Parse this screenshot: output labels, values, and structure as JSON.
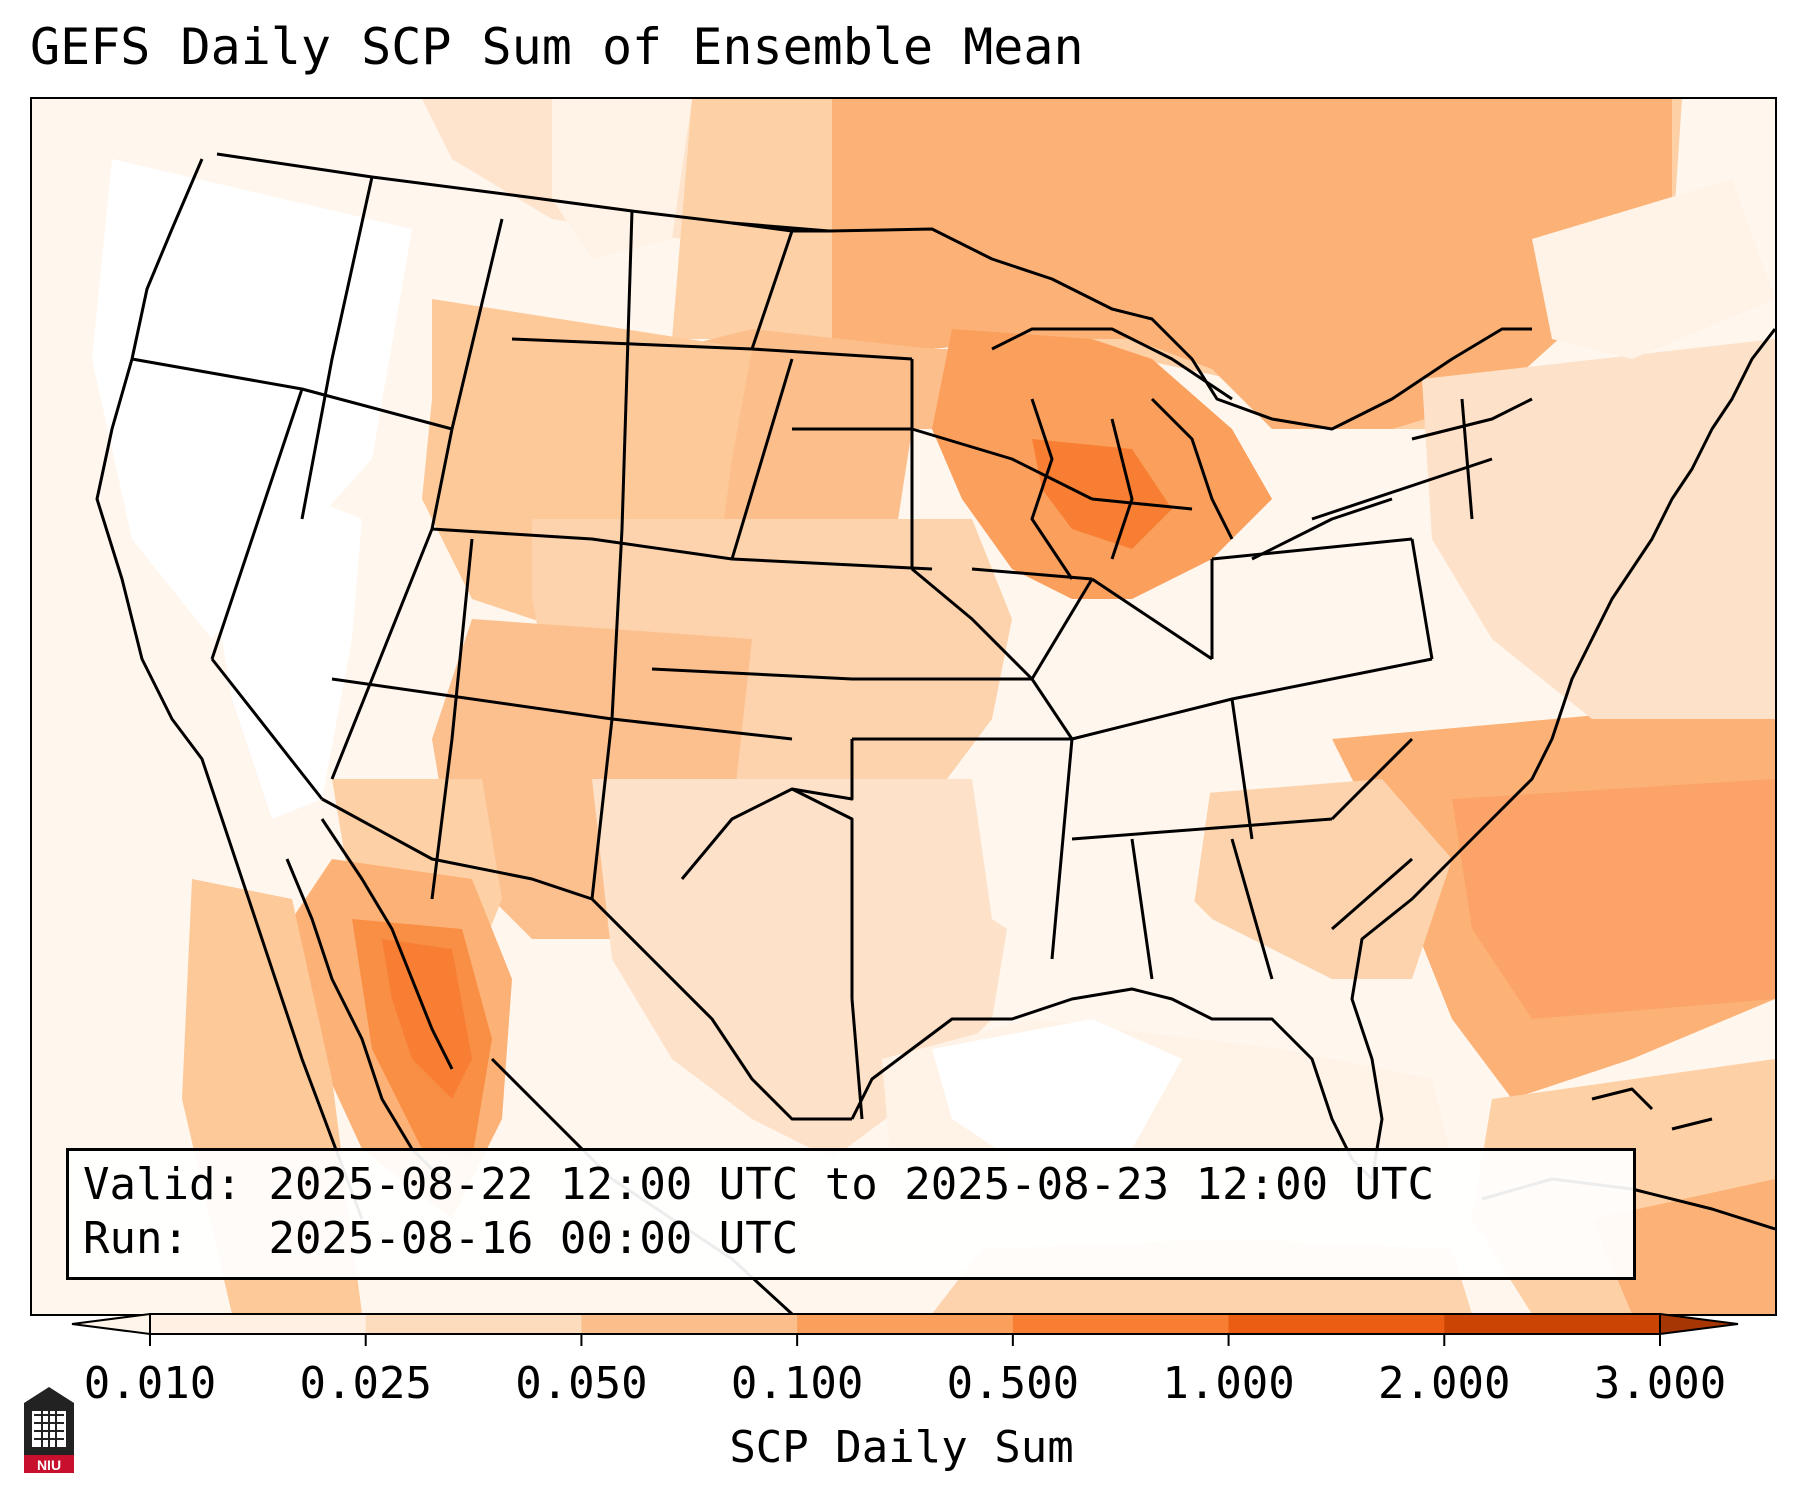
{
  "title": "GEFS Daily SCP Sum of Ensemble Mean",
  "info": {
    "valid_label": "Valid:",
    "valid_value": "2025-08-22 12:00 UTC to 2025-08-23 12:00 UTC",
    "run_label": "Run:",
    "run_value": "2025-08-16 00:00 UTC"
  },
  "colorbar": {
    "label": "SCP Daily Sum",
    "ticks": [
      "0.010",
      "0.025",
      "0.050",
      "0.100",
      "0.500",
      "1.000",
      "2.000",
      "3.000"
    ],
    "colors": [
      "#fff0e3",
      "#fddbbd",
      "#fcbf8c",
      "#fb9f5c",
      "#f77e32",
      "#ea5d12",
      "#cc4404"
    ],
    "extend": "both"
  },
  "logo": {
    "text": "NIU",
    "color": "#c8102e"
  },
  "map_colors": {
    "land_background": "#ffffff",
    "border_color": "#000000"
  }
}
